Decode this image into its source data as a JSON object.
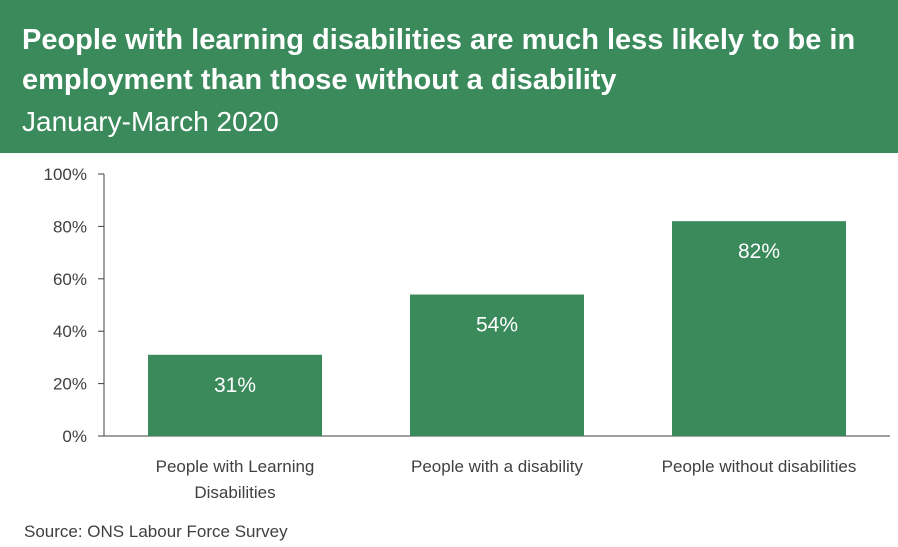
{
  "header": {
    "title": "People with learning disabilities are much less likely to be in employment than those without a disability",
    "subtitle": "January-March 2020",
    "background_color": "#3a8a5c"
  },
  "chart_data": {
    "type": "bar",
    "categories": [
      [
        "People with Learning",
        "Disabilities"
      ],
      [
        "People with a disability"
      ],
      [
        "People without disabilities"
      ]
    ],
    "values": [
      31,
      54,
      82
    ],
    "value_labels": [
      "31%",
      "54%",
      "82%"
    ],
    "ylim": [
      0,
      100
    ],
    "yticks": [
      0,
      20,
      40,
      60,
      80,
      100
    ],
    "ytick_labels": [
      "0%",
      "20%",
      "40%",
      "60%",
      "80%",
      "100%"
    ],
    "bar_color": "#3a8a5c",
    "grid": false
  },
  "source": "Source:  ONS Labour Force Survey"
}
